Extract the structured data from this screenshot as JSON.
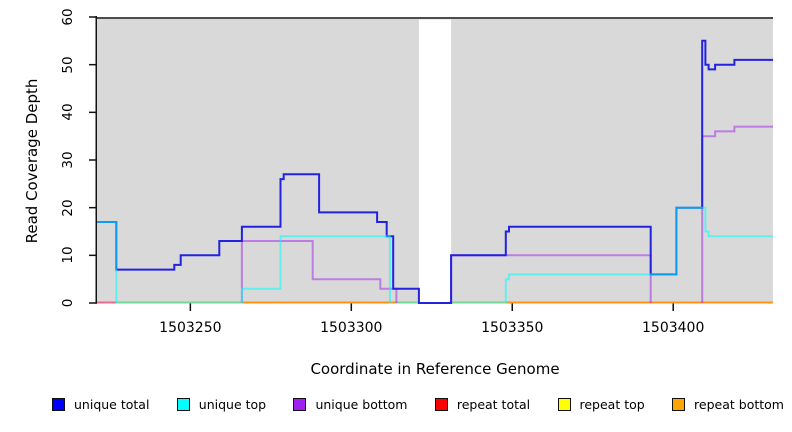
{
  "figure": {
    "xlabel": "Coordinate in Reference Genome",
    "ylabel": "Read Coverage Depth"
  },
  "chart_data": {
    "type": "line",
    "subtype": "step",
    "title": "",
    "xlabel": "Coordinate in Reference Genome",
    "ylabel": "Read Coverage Depth",
    "xlim": [
      1503221,
      1503431
    ],
    "ylim": [
      0,
      60
    ],
    "xticks": [
      1503250,
      1503300,
      1503350,
      1503400
    ],
    "yticks": [
      0,
      10,
      20,
      30,
      40,
      50,
      60
    ],
    "grid": false,
    "legend_position": "bottom",
    "plot_background": "#d9d9d9",
    "gap_region": {
      "from": 1503321,
      "to": 1503331
    },
    "series": [
      {
        "name": "unique total",
        "legend_color": "#0000ff",
        "line_color": "#2222df",
        "opacity": 1,
        "draw_zero_runs": true,
        "points": [
          [
            1503221,
            17
          ],
          [
            1503227,
            7
          ],
          [
            1503245,
            8
          ],
          [
            1503247,
            10
          ],
          [
            1503259,
            13
          ],
          [
            1503266,
            16
          ],
          [
            1503278,
            26
          ],
          [
            1503279,
            27
          ],
          [
            1503290,
            19
          ],
          [
            1503308,
            17
          ],
          [
            1503311,
            14
          ],
          [
            1503313,
            3
          ],
          [
            1503321,
            0
          ],
          [
            1503331,
            10
          ],
          [
            1503348,
            15
          ],
          [
            1503349,
            16
          ],
          [
            1503393,
            6
          ],
          [
            1503401,
            20
          ],
          [
            1503409,
            55
          ],
          [
            1503410,
            50
          ],
          [
            1503411,
            49
          ],
          [
            1503413,
            50
          ],
          [
            1503419,
            51
          ],
          [
            1503431,
            51
          ]
        ]
      },
      {
        "name": "unique top",
        "legend_color": "#00ffff",
        "line_color": "#00ffff",
        "opacity": 0.55,
        "draw_zero_runs": false,
        "points": [
          [
            1503221,
            17
          ],
          [
            1503227,
            0
          ],
          [
            1503266,
            3
          ],
          [
            1503278,
            14
          ],
          [
            1503312,
            0
          ],
          [
            1503348,
            5
          ],
          [
            1503349,
            6
          ],
          [
            1503401,
            20
          ],
          [
            1503410,
            15
          ],
          [
            1503411,
            14
          ],
          [
            1503431,
            14
          ]
        ]
      },
      {
        "name": "unique bottom",
        "legend_color": "#a020f0",
        "line_color": "#a020f0",
        "opacity": 0.5,
        "draw_zero_runs": false,
        "points": [
          [
            1503221,
            0
          ],
          [
            1503266,
            13
          ],
          [
            1503288,
            5
          ],
          [
            1503309,
            3
          ],
          [
            1503314,
            0
          ],
          [
            1503331,
            10
          ],
          [
            1503393,
            0
          ],
          [
            1503409,
            35
          ],
          [
            1503413,
            36
          ],
          [
            1503419,
            37
          ],
          [
            1503431,
            37
          ]
        ]
      },
      {
        "name": "repeat total",
        "legend_color": "#ff0000",
        "line_color": "#ff0000",
        "opacity": 0.5,
        "draw_zero_runs": false,
        "points": [
          [
            1503221,
            0
          ],
          [
            1503431,
            0
          ]
        ]
      },
      {
        "name": "repeat top",
        "legend_color": "#ffff00",
        "line_color": "#ffff00",
        "opacity": 0.5,
        "draw_zero_runs": false,
        "points": [
          [
            1503221,
            0
          ],
          [
            1503431,
            0
          ]
        ]
      },
      {
        "name": "repeat bottom",
        "legend_color": "#ffa500",
        "line_color": "#ff9312",
        "opacity": 1,
        "draw_zero_runs": false,
        "points": [
          [
            1503221,
            0
          ],
          [
            1503431,
            0
          ]
        ]
      }
    ],
    "zero_line_segments": [
      {
        "from": 1503221,
        "to": 1503227,
        "color": "#ec6c91"
      },
      {
        "from": 1503227,
        "to": 1503266,
        "color": "#74d898"
      },
      {
        "from": 1503266,
        "to": 1503314,
        "color": "#ff9312"
      },
      {
        "from": 1503314,
        "to": 1503321,
        "color": "#74d898"
      },
      {
        "from": 1503331,
        "to": 1503348,
        "color": "#74d898"
      },
      {
        "from": 1503348,
        "to": 1503431,
        "color": "#ff9312"
      }
    ]
  }
}
